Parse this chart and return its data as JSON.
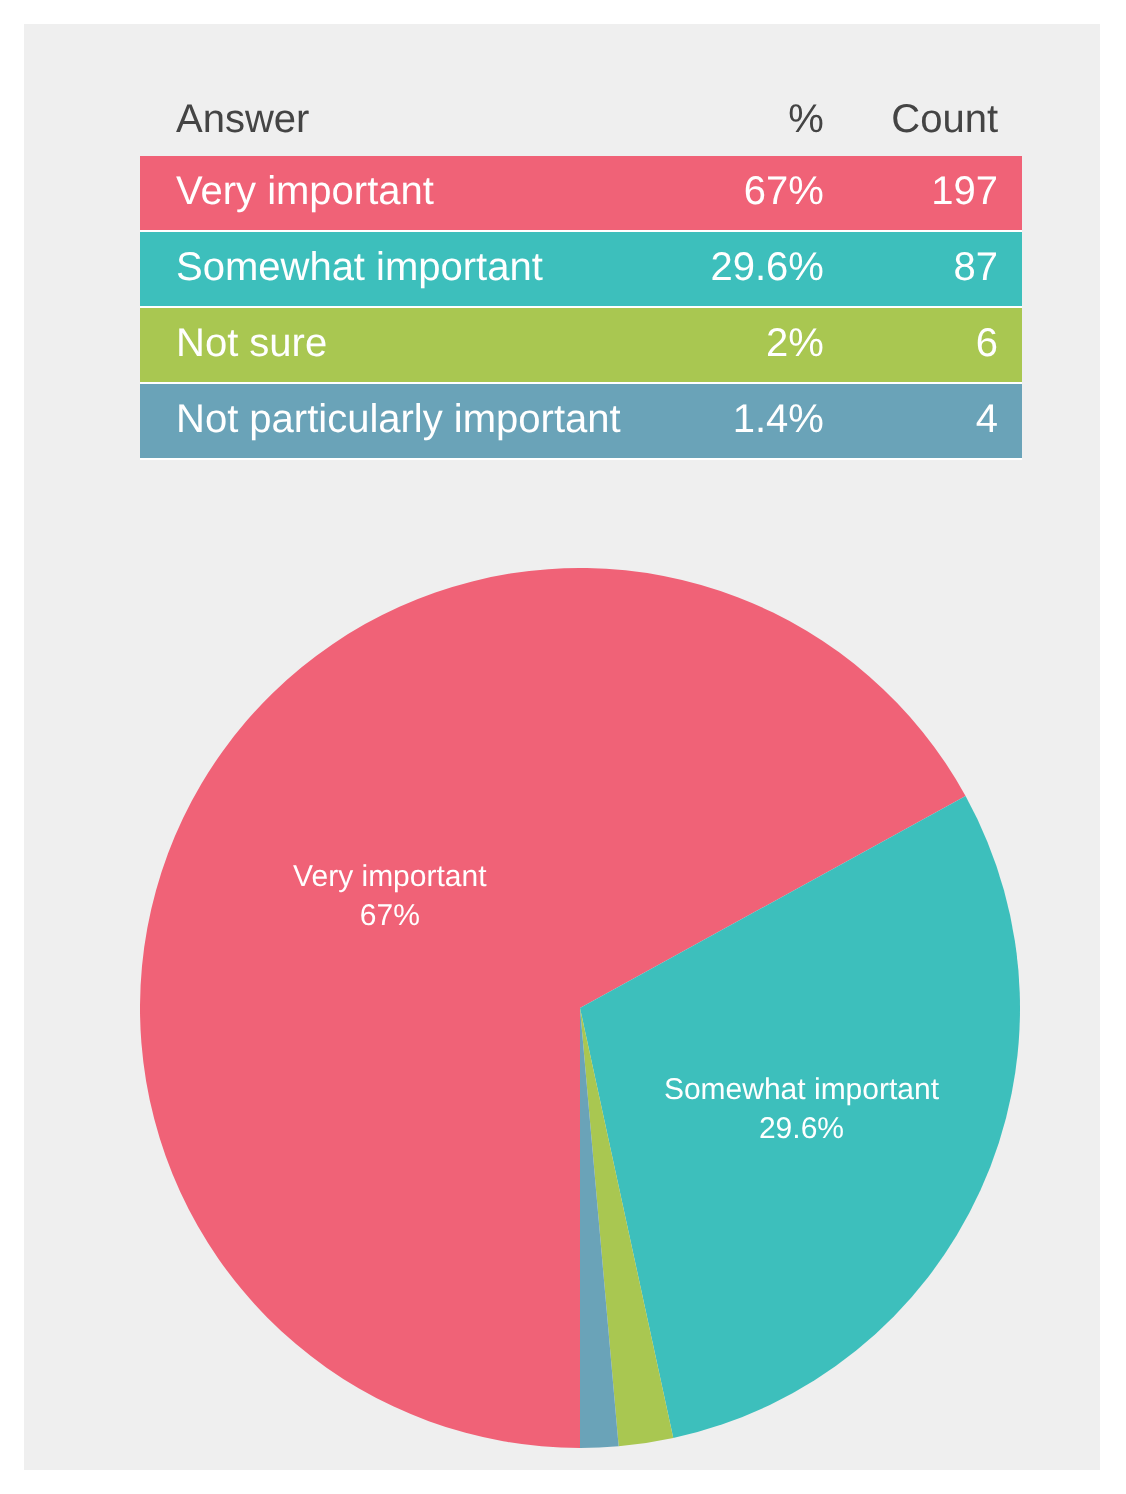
{
  "chart_data": [
    {
      "type": "other",
      "annotations": [
        "Answer"
      ],
      "data_labels": true,
      "categories": [
        "Very important",
        "Somewhat important",
        "Not sure",
        "Not particularly important"
      ],
      "series": [
        {
          "name": "%",
          "colors": [
            "#f06277",
            "#3dbfbc",
            "#a9c751",
            "#6aa3b8"
          ],
          "values": [
            67,
            29.6,
            2,
            1.4
          ],
          "value_labels": [
            "67%",
            "29.6%",
            "2%",
            "1.4%"
          ]
        },
        {
          "name": "Count",
          "colors": [
            "#f06277",
            "#3dbfbc",
            "#a9c751",
            "#6aa3b8"
          ],
          "values": [
            197,
            87,
            6,
            4
          ]
        }
      ]
    },
    {
      "type": "pie",
      "categories": [
        "Very important",
        "Somewhat important",
        null,
        null
      ],
      "values": [
        67,
        29.6,
        2,
        1.4
      ],
      "value_labels": [
        "67%",
        "29.6%",
        null,
        null
      ],
      "colors": [
        "#f06277",
        "#3dbfbc",
        "#a9c751",
        "#6aa3b8"
      ],
      "legend": false
    }
  ]
}
